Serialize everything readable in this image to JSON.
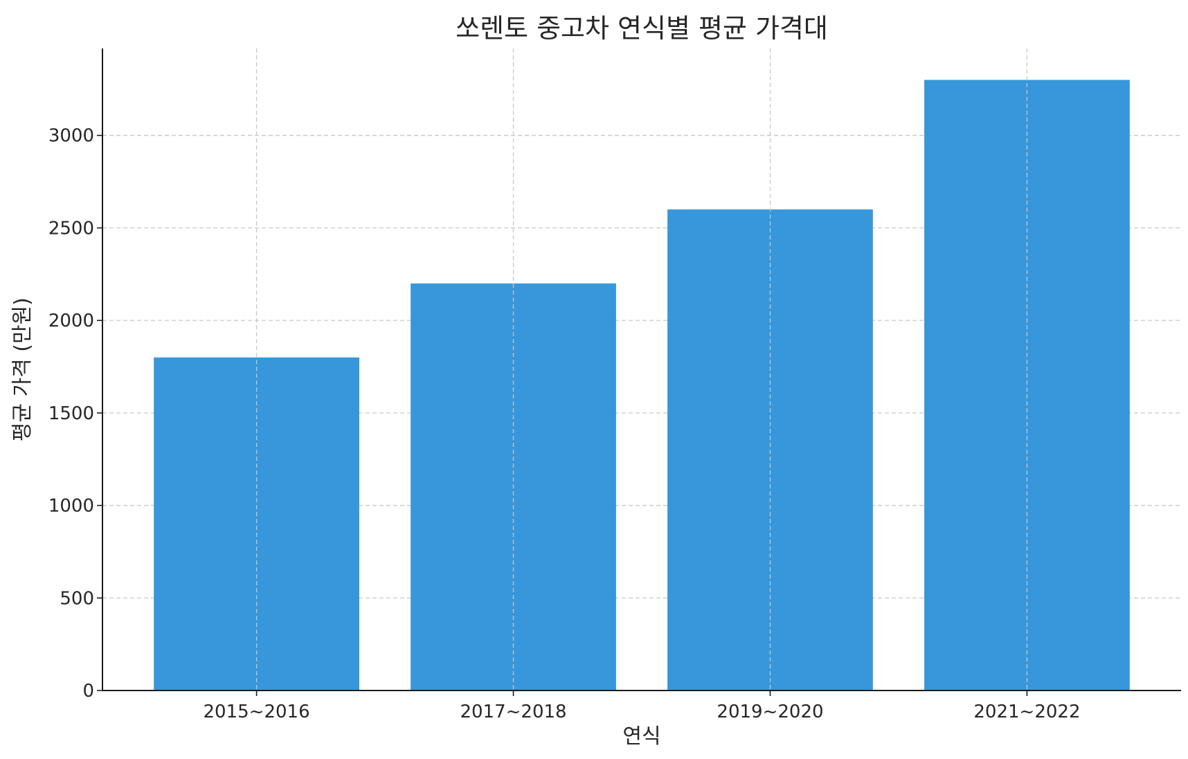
{
  "chart_data": {
    "type": "bar",
    "title": "쏘렌토 중고차 연식별 평균 가격대",
    "xlabel": "연식",
    "ylabel": "평균 가격 (만원)",
    "categories": [
      "2015~2016",
      "2017~2018",
      "2019~2020",
      "2021~2022"
    ],
    "values": [
      1800,
      2200,
      2600,
      3300
    ],
    "ylim": [
      0,
      3470
    ],
    "yticks": [
      0,
      500,
      1000,
      1500,
      2000,
      2500,
      3000
    ],
    "grid": true,
    "bar_color": "#3797da"
  }
}
